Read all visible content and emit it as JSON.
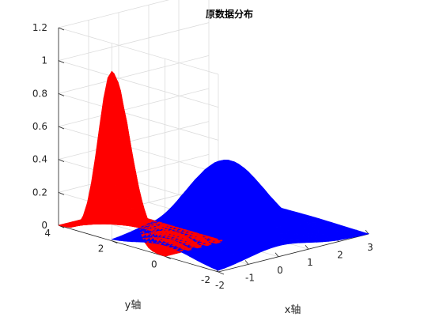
{
  "chart_data": {
    "type": "surface",
    "title": "原数据分布",
    "xlabel": "x轴",
    "ylabel": "y轴",
    "zlabel": "",
    "xlim": [
      -2,
      3
    ],
    "ylim": [
      -2,
      4
    ],
    "zlim": [
      0,
      1.2
    ],
    "xticks": [
      "-2",
      "-1",
      "0",
      "1",
      "2",
      "3"
    ],
    "yticks": [
      "-2",
      "0",
      "2",
      "4"
    ],
    "zticks": [
      "0",
      "0.2",
      "0.4",
      "0.6",
      "0.8",
      "1",
      "1.2"
    ],
    "grid": true,
    "series": [
      {
        "color": "#ff0000",
        "center": [
          -2,
          2
        ],
        "sigma": [
          0.4,
          0.5
        ],
        "peak": 1.03,
        "x_range": [
          -2,
          0
        ],
        "y_range": [
          0,
          4
        ]
      },
      {
        "color": "#0000ff",
        "center": [
          0,
          0
        ],
        "sigma": [
          1.0,
          1.0
        ],
        "peak": 0.49,
        "x_range": [
          -2,
          3
        ],
        "y_range": [
          -2,
          2
        ]
      }
    ]
  }
}
